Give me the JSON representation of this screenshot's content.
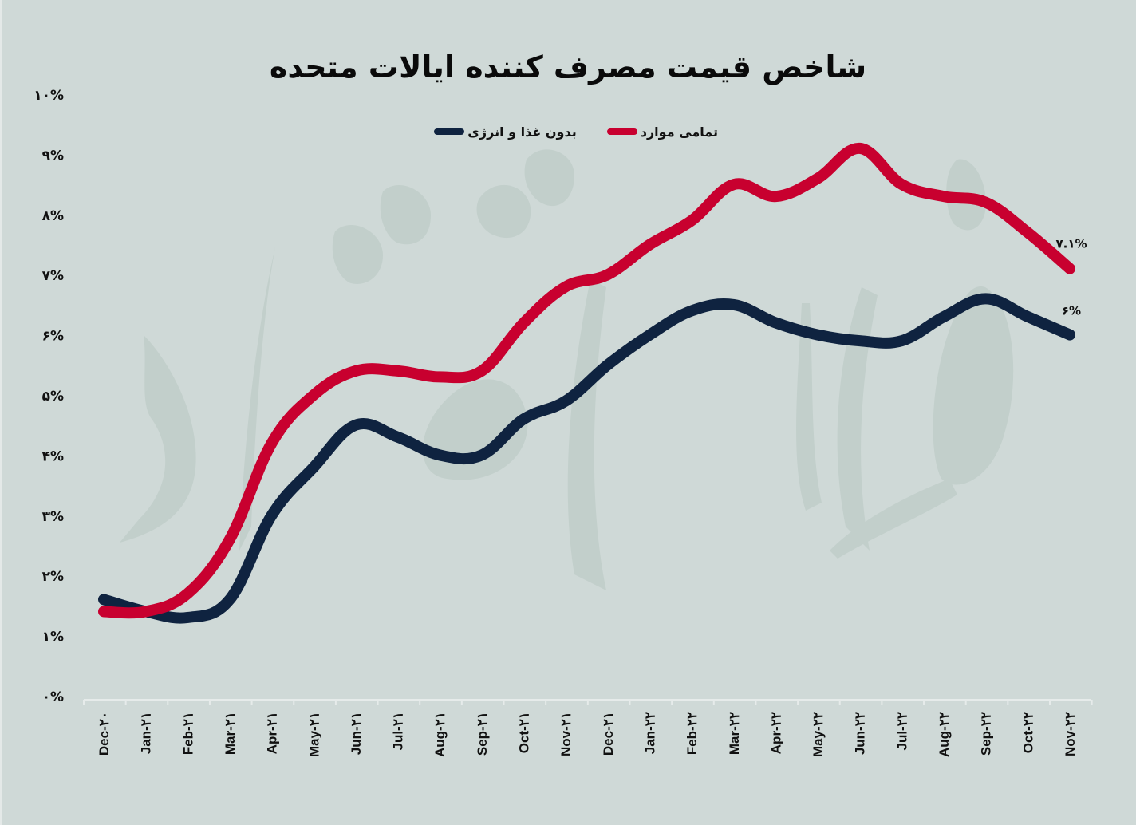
{
  "title": "شاخص قیمت مصرف کننده ایالات متحده",
  "legend": {
    "items": [
      {
        "label": "تمامی موارد",
        "color": "#c8002f"
      },
      {
        "label": "بدون غذا و انرژی",
        "color": "#0f2340"
      }
    ]
  },
  "y_axis": {
    "ticks": [
      "۰%",
      "۱%",
      "۲%",
      "۳%",
      "۴%",
      "۵%",
      "۶%",
      "۷%",
      "۸%",
      "۹%",
      "۱۰%"
    ]
  },
  "x_axis": {
    "ticks": [
      "Dec-۲۰",
      "Jan-۲۱",
      "Feb-۲۱",
      "Mar-۲۱",
      "Apr-۲۱",
      "May-۲۱",
      "Jun-۲۱",
      "Jul-۲۱",
      "Aug-۲۱",
      "Sep-۲۱",
      "Oct-۲۱",
      "Nov-۲۱",
      "Dec-۲۱",
      "Jan-۲۲",
      "Feb-۲۲",
      "Mar-۲۲",
      "Apr-۲۲",
      "May-۲۲",
      "Jun-۲۲",
      "Jul-۲۲",
      "Aug-۲۲",
      "Sep-۲۲",
      "Oct-۲۲",
      "Nov-۲۲"
    ]
  },
  "end_labels": {
    "all_items": "۷.۱%",
    "core": "۶%"
  },
  "chart_data": {
    "type": "line",
    "title": "شاخص قیمت مصرف کننده ایالات متحده",
    "xlabel": "",
    "ylabel": "",
    "ylim": [
      0,
      10
    ],
    "y_unit": "%",
    "grid": false,
    "legend_position": "top-center",
    "categories": [
      "Dec-20",
      "Jan-21",
      "Feb-21",
      "Mar-21",
      "Apr-21",
      "May-21",
      "Jun-21",
      "Jul-21",
      "Aug-21",
      "Sep-21",
      "Oct-21",
      "Nov-21",
      "Dec-21",
      "Jan-22",
      "Feb-22",
      "Mar-22",
      "Apr-22",
      "May-22",
      "Jun-22",
      "Jul-22",
      "Aug-22",
      "Sep-22",
      "Oct-22",
      "Nov-22"
    ],
    "series": [
      {
        "name": "تمامی موارد",
        "color": "#c8002f",
        "values": [
          1.4,
          1.4,
          1.7,
          2.6,
          4.2,
          5.0,
          5.4,
          5.4,
          5.3,
          5.4,
          6.2,
          6.8,
          7.0,
          7.5,
          7.9,
          8.5,
          8.3,
          8.6,
          9.1,
          8.5,
          8.3,
          8.2,
          7.7,
          7.1
        ]
      },
      {
        "name": "بدون غذا و انرژی",
        "color": "#0f2340",
        "values": [
          1.6,
          1.4,
          1.3,
          1.6,
          3.0,
          3.8,
          4.5,
          4.3,
          4.0,
          4.0,
          4.6,
          4.9,
          5.5,
          6.0,
          6.4,
          6.5,
          6.2,
          6.0,
          5.9,
          5.9,
          6.3,
          6.6,
          6.3,
          6.0
        ]
      }
    ],
    "annotations": [
      {
        "series": "تمامی موارد",
        "x": "Nov-22",
        "text": "۷.۱%"
      },
      {
        "series": "بدون غذا و انرژی",
        "x": "Nov-22",
        "text": "۶%"
      }
    ]
  }
}
